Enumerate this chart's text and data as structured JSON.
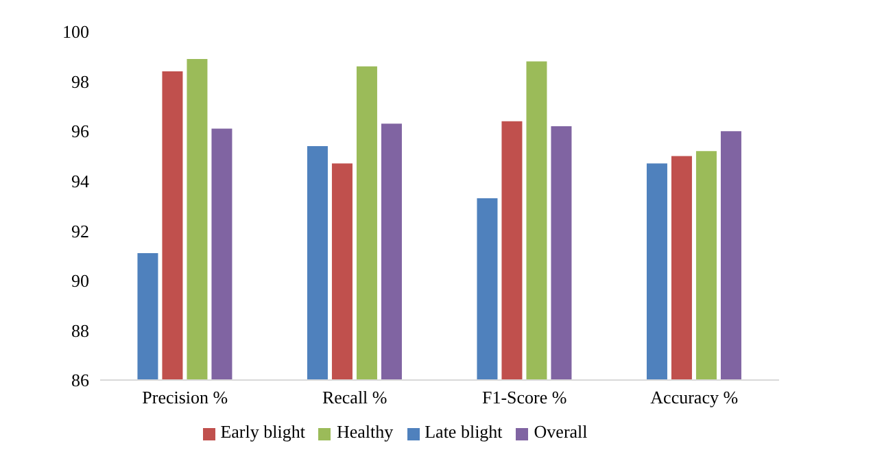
{
  "chart_data": {
    "type": "bar",
    "categories": [
      "Precision %",
      "Recall %",
      "F1-Score %",
      "Accuracy %"
    ],
    "series": [
      {
        "name": "Late blight",
        "color": "#4f81bd",
        "values": [
          91.1,
          95.4,
          93.3,
          94.7
        ]
      },
      {
        "name": "Early blight",
        "color": "#c0504d",
        "values": [
          98.4,
          94.7,
          96.4,
          95.0
        ]
      },
      {
        "name": "Healthy",
        "color": "#9bbb59",
        "values": [
          98.9,
          98.6,
          98.8,
          95.2
        ]
      },
      {
        "name": "Overall",
        "color": "#8064a2",
        "values": [
          96.1,
          96.3,
          96.2,
          96.0
        ]
      }
    ],
    "ylim": [
      86,
      100
    ],
    "yticks": [
      86,
      88,
      90,
      92,
      94,
      96,
      98,
      100
    ],
    "grid": false,
    "legend": "bottom"
  }
}
